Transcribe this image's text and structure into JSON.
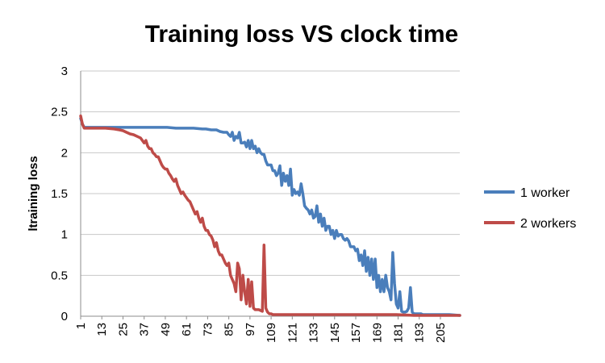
{
  "chart_data": {
    "type": "line",
    "title": "Training loss VS clock time",
    "xlabel": "",
    "ylabel": "ltraining loss",
    "ylim": [
      0,
      3
    ],
    "yticks": [
      "0",
      "0.5",
      "1",
      "1.5",
      "2",
      "2.5",
      "3"
    ],
    "xlim": [
      1,
      216
    ],
    "xticks": [
      "1",
      "13",
      "25",
      "37",
      "49",
      "61",
      "73",
      "85",
      "97",
      "109",
      "121",
      "133",
      "145",
      "157",
      "169",
      "181",
      "193",
      "205"
    ],
    "grid": true,
    "legend_position": "right",
    "series": [
      {
        "name": "1 worker",
        "color": "#4a7ebb",
        "x": [
          1,
          2,
          3,
          5,
          10,
          20,
          30,
          40,
          45,
          50,
          55,
          60,
          65,
          70,
          72,
          75,
          78,
          80,
          82,
          84,
          85,
          86,
          87,
          88,
          89,
          90,
          91,
          92,
          93,
          94,
          95,
          96,
          97,
          98,
          99,
          100,
          101,
          102,
          103,
          104,
          105,
          106,
          107,
          108,
          109,
          110,
          111,
          112,
          113,
          114,
          115,
          116,
          117,
          118,
          119,
          120,
          121,
          122,
          123,
          124,
          125,
          126,
          127,
          128,
          129,
          130,
          131,
          132,
          133,
          134,
          135,
          136,
          137,
          138,
          139,
          140,
          141,
          142,
          143,
          144,
          145,
          146,
          147,
          148,
          149,
          150,
          151,
          152,
          153,
          154,
          155,
          156,
          157,
          158,
          159,
          160,
          161,
          162,
          163,
          164,
          165,
          166,
          167,
          168,
          169,
          170,
          171,
          172,
          173,
          174,
          175,
          176,
          177,
          178,
          179,
          180,
          181,
          182,
          183,
          184,
          185,
          186,
          187,
          188,
          189,
          190,
          191,
          192,
          193,
          194,
          195,
          200,
          205,
          210,
          216
        ],
        "y": [
          2.42,
          2.35,
          2.31,
          2.31,
          2.31,
          2.31,
          2.31,
          2.31,
          2.31,
          2.31,
          2.3,
          2.3,
          2.3,
          2.29,
          2.29,
          2.28,
          2.28,
          2.26,
          2.25,
          2.25,
          2.22,
          2.2,
          2.25,
          2.15,
          2.2,
          2.18,
          2.25,
          2.12,
          2.12,
          2.13,
          2.07,
          2.15,
          2.05,
          2.15,
          2.05,
          2.08,
          2.0,
          2.05,
          2.0,
          1.98,
          1.98,
          1.9,
          1.85,
          1.85,
          1.85,
          1.78,
          1.78,
          1.72,
          1.75,
          1.84,
          1.6,
          1.75,
          1.65,
          1.72,
          1.6,
          1.8,
          1.48,
          1.55,
          1.5,
          1.52,
          1.48,
          1.62,
          1.5,
          1.35,
          1.32,
          1.3,
          1.25,
          1.3,
          1.2,
          1.22,
          1.35,
          1.15,
          1.25,
          1.1,
          1.2,
          1.05,
          1.1,
          1.1,
          1.0,
          1.05,
          0.95,
          1.05,
          0.98,
          1.0,
          1.0,
          0.95,
          0.93,
          0.95,
          0.92,
          0.85,
          0.85,
          0.85,
          0.8,
          0.82,
          0.68,
          0.75,
          0.62,
          0.8,
          0.55,
          0.72,
          0.5,
          0.7,
          0.45,
          0.7,
          0.35,
          0.5,
          0.3,
          0.45,
          0.3,
          0.5,
          0.35,
          0.3,
          0.2,
          0.78,
          0.4,
          0.15,
          0.1,
          0.3,
          0.06,
          0.05,
          0.05,
          0.06,
          0.1,
          0.35,
          0.05,
          0.03,
          0.03,
          0.03,
          0.03,
          0.03,
          0.02,
          0.02,
          0.02,
          0.02,
          0.01
        ]
      },
      {
        "name": "2 workers",
        "color": "#be4b48",
        "x": [
          1,
          2,
          3,
          5,
          10,
          15,
          20,
          23,
          25,
          27,
          29,
          31,
          33,
          35,
          37,
          38,
          39,
          40,
          41,
          42,
          43,
          44,
          45,
          46,
          47,
          48,
          49,
          50,
          51,
          52,
          53,
          54,
          55,
          56,
          57,
          58,
          59,
          60,
          61,
          62,
          63,
          64,
          65,
          66,
          67,
          68,
          69,
          70,
          71,
          72,
          73,
          74,
          75,
          76,
          77,
          78,
          79,
          80,
          81,
          82,
          83,
          84,
          85,
          86,
          87,
          88,
          89,
          90,
          91,
          92,
          93,
          94,
          95,
          96,
          97,
          98,
          99,
          100,
          101,
          102,
          103,
          104,
          105,
          106,
          107,
          108,
          109,
          110,
          111,
          112,
          115,
          120,
          130,
          140,
          150,
          160,
          170,
          180,
          190,
          200,
          216
        ],
        "y": [
          2.45,
          2.35,
          2.3,
          2.3,
          2.3,
          2.3,
          2.29,
          2.28,
          2.27,
          2.25,
          2.23,
          2.22,
          2.2,
          2.18,
          2.12,
          2.15,
          2.08,
          2.05,
          2.05,
          2.0,
          1.98,
          1.95,
          1.95,
          1.9,
          1.85,
          1.82,
          1.8,
          1.8,
          1.75,
          1.72,
          1.68,
          1.65,
          1.68,
          1.6,
          1.55,
          1.5,
          1.52,
          1.48,
          1.45,
          1.42,
          1.4,
          1.35,
          1.3,
          1.25,
          1.28,
          1.2,
          1.15,
          1.2,
          1.1,
          1.05,
          1.05,
          1.0,
          0.98,
          0.93,
          0.85,
          0.9,
          0.8,
          0.75,
          0.75,
          0.7,
          0.65,
          0.62,
          0.65,
          0.5,
          0.45,
          0.4,
          0.3,
          0.65,
          0.58,
          0.2,
          0.5,
          0.3,
          0.15,
          0.45,
          0.12,
          0.42,
          0.1,
          0.08,
          0.08,
          0.08,
          0.07,
          0.06,
          0.87,
          0.1,
          0.05,
          0.03,
          0.03,
          0.02,
          0.02,
          0.02,
          0.02,
          0.02,
          0.02,
          0.02,
          0.02,
          0.02,
          0.02,
          0.02,
          0.01,
          0.01,
          0.01
        ]
      }
    ]
  }
}
